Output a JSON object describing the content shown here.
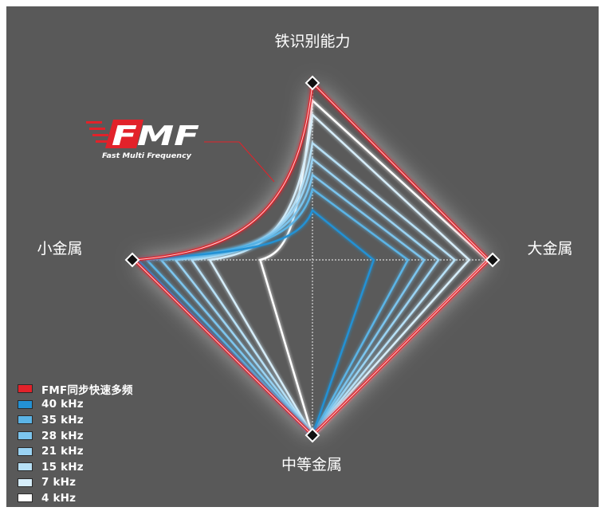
{
  "colors": {
    "background": "#595959",
    "fmf": "#e2222a",
    "freq_dark": "#1e8fd0",
    "freq_light": "#ffffff"
  },
  "logo": {
    "mark": "FMF",
    "tagline": "Fast Multi Frequency"
  },
  "chart_data": {
    "type": "radar",
    "axes": [
      "铁识别能力",
      "大金属",
      "中等金属",
      "小金属"
    ],
    "range": [
      0,
      1
    ],
    "grid": true,
    "legend_position": "bottom-left",
    "series": [
      {
        "name": "FMF同步快速多频",
        "color": "#e2222a",
        "values": [
          1.0,
          0.98,
          1.0,
          0.99
        ]
      },
      {
        "name": "40 kHz",
        "color": "#2391d4",
        "values": [
          0.28,
          0.34,
          1.0,
          0.97
        ]
      },
      {
        "name": "35 kHz",
        "color": "#5bb4e6",
        "values": [
          0.4,
          0.53,
          1.0,
          0.92
        ]
      },
      {
        "name": "28 kHz",
        "color": "#7cc5ee",
        "values": [
          0.48,
          0.62,
          1.0,
          0.84
        ]
      },
      {
        "name": "21 kHz",
        "color": "#9ad3f3",
        "values": [
          0.57,
          0.7,
          1.0,
          0.76
        ]
      },
      {
        "name": "15 kHz",
        "color": "#b7e0f6",
        "values": [
          0.66,
          0.79,
          1.0,
          0.67
        ]
      },
      {
        "name": "7 kHz",
        "color": "#d6edf9",
        "values": [
          0.82,
          0.87,
          1.0,
          0.57
        ]
      },
      {
        "name": "4 kHz",
        "color": "#ffffff",
        "values": [
          0.9,
          0.97,
          1.0,
          0.29
        ]
      }
    ]
  }
}
